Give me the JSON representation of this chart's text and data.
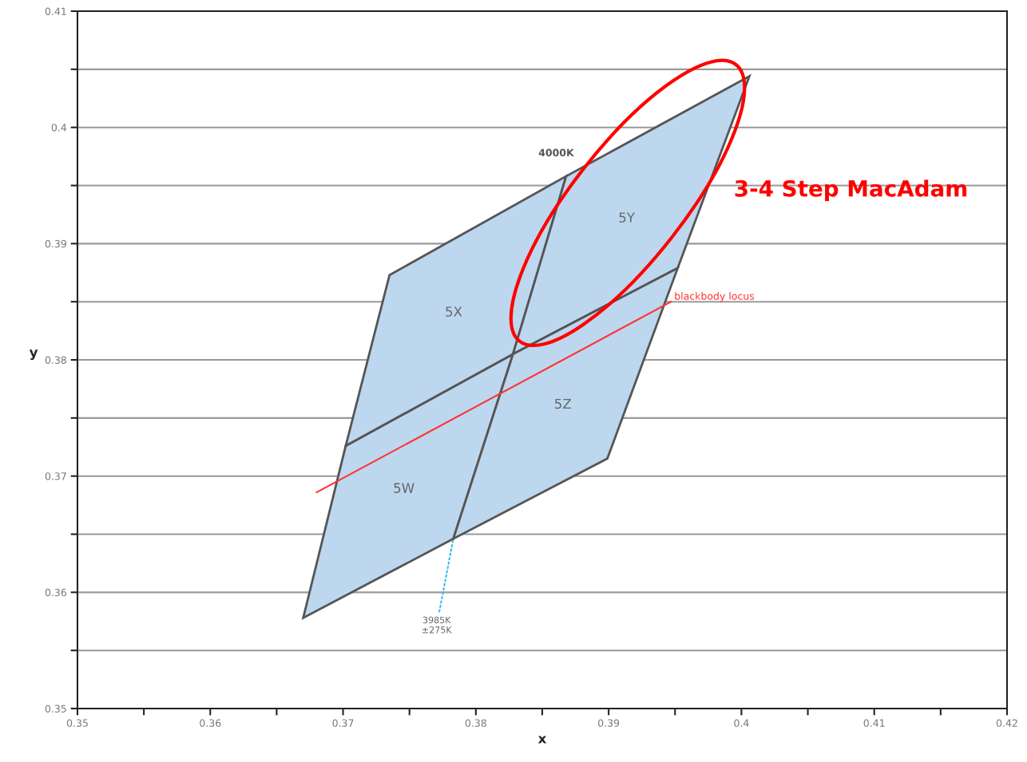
{
  "chart_data": {
    "type": "area",
    "xlabel": "x",
    "ylabel": "y",
    "series": [
      {
        "name": "5W",
        "color": "#bdd7ee",
        "x": [
          0.367,
          0.3702,
          0.3828,
          0.3783,
          0.367
        ],
        "values": [
          0.3578,
          0.3726,
          0.3805,
          0.3646,
          0.3578
        ]
      },
      {
        "name": "5X",
        "color": "#bdd7ee",
        "x": [
          0.3702,
          0.3735,
          0.3868,
          0.3828,
          0.3702
        ],
        "values": [
          0.3726,
          0.3873,
          0.3958,
          0.3805,
          0.3726
        ]
      },
      {
        "name": "5Y",
        "color": "#bdd7ee",
        "x": [
          0.3828,
          0.3868,
          0.4006,
          0.3952,
          0.3828
        ],
        "values": [
          0.3805,
          0.3958,
          0.4044,
          0.3879,
          0.3805
        ]
      },
      {
        "name": "5Z",
        "color": "#bdd7ee",
        "x": [
          0.3783,
          0.3828,
          0.3952,
          0.3899,
          0.3783
        ],
        "values": [
          0.3646,
          0.3805,
          0.3879,
          0.3715,
          0.3646
        ]
      },
      {
        "name": "blackbody locus",
        "type": "line",
        "color": "#ff3333",
        "x": [
          0.368,
          0.3947
        ],
        "values": [
          0.3686,
          0.385
        ]
      }
    ],
    "annotations": [
      {
        "text": "4000K",
        "x": 0.3868,
        "y": 0.3958
      },
      {
        "text": "3985K\n±275K",
        "x": 0.3783,
        "y": 0.3646
      },
      "3-4 Step MacAdam"
    ],
    "xlim": [
      0.35,
      0.42
    ],
    "xticks": [
      0.35,
      {
        "value": 0.355,
        "label": null
      },
      0.36,
      {
        "value": 0.365,
        "label": null
      },
      0.37,
      {
        "value": 0.375,
        "label": null
      },
      0.38,
      {
        "value": 0.385,
        "label": null
      },
      0.39,
      {
        "value": 0.395,
        "label": null
      },
      0.4,
      {
        "value": 0.405,
        "label": null
      },
      0.41,
      {
        "value": 0.415,
        "label": null
      },
      0.42
    ],
    "ylim": [
      0.35,
      0.41
    ],
    "yticks": [
      0.35,
      {
        "value": 0.355,
        "label": null
      },
      0.36,
      {
        "value": 0.365,
        "label": null
      },
      0.37,
      {
        "value": 0.375,
        "label": null
      },
      0.38,
      {
        "value": 0.385,
        "label": null
      },
      0.39,
      {
        "value": 0.395,
        "label": null
      },
      0.4,
      {
        "value": 0.405,
        "label": null
      },
      0.41
    ],
    "grid": "y",
    "legend": false
  }
}
